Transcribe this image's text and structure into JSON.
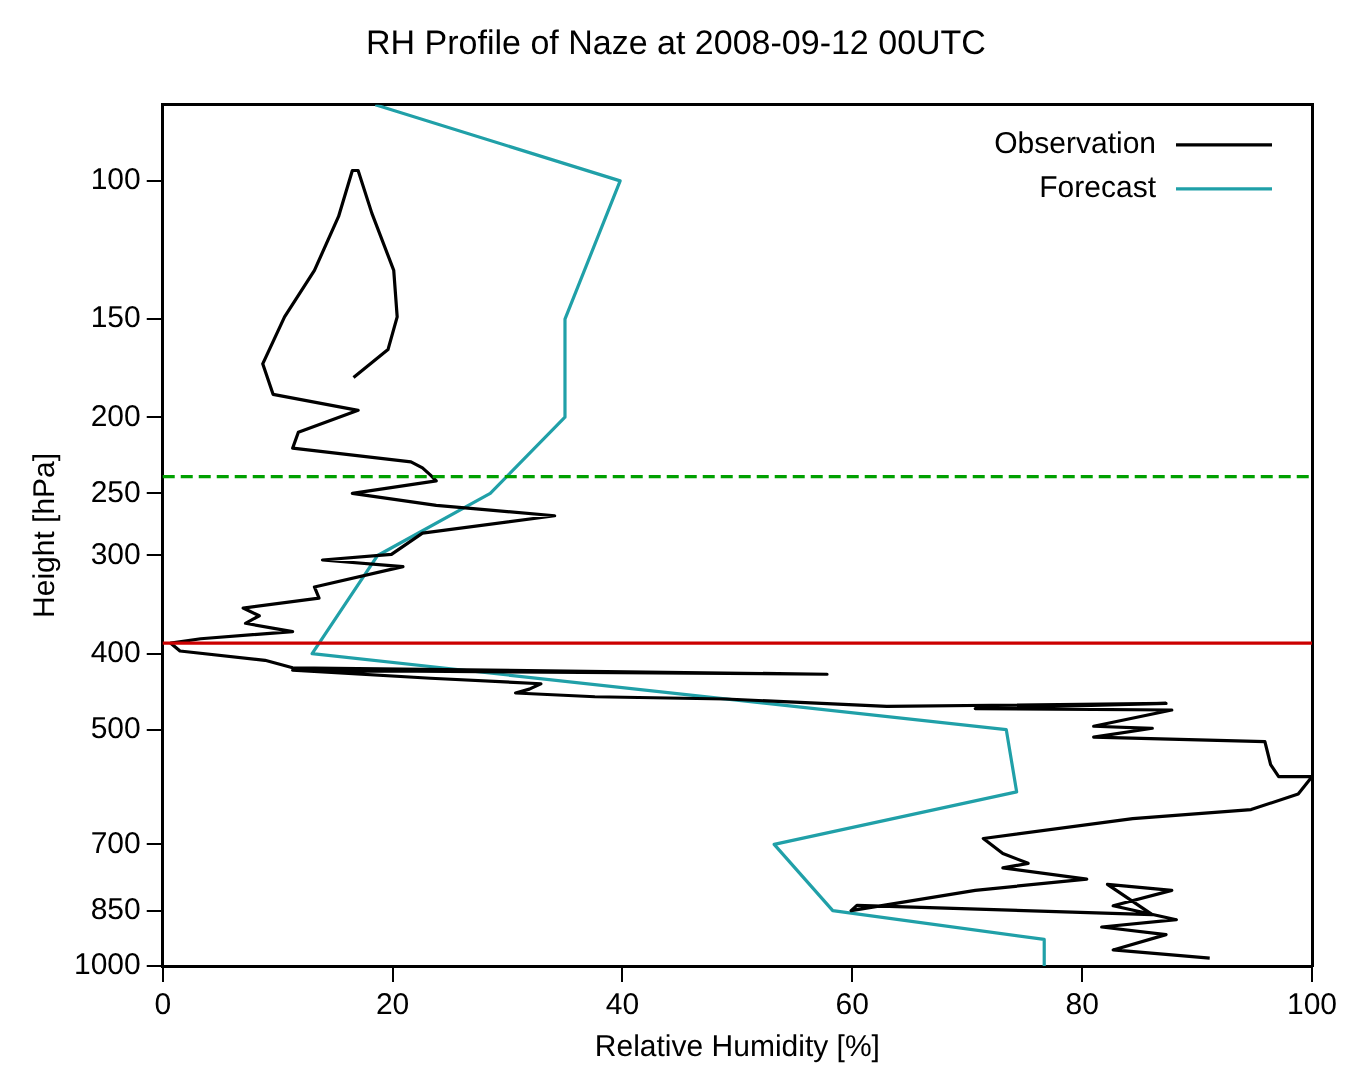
{
  "chart_data": {
    "type": "line",
    "title": "RH Profile of Naze at 2008-09-12 00UTC",
    "xlabel": "Relative Humidity [%]",
    "ylabel": "Height [hPa]",
    "xlim": [
      0,
      100
    ],
    "xticks": [
      0,
      20,
      40,
      60,
      80,
      100
    ],
    "ylim": [
      1000,
      80
    ],
    "yticks": [
      100,
      150,
      200,
      250,
      300,
      400,
      500,
      700,
      850,
      1000
    ],
    "log": "y",
    "grid": false,
    "legend": "top right",
    "marker": "none",
    "line_style": "solid",
    "series": [
      {
        "name": "Observation",
        "color": "#000000",
        "x": [
          91.1,
          82.7,
          87.3,
          81.7,
          88.2,
          82.7,
          87.8,
          82.2,
          86.1,
          60.4,
          59.9,
          70.7,
          80.4,
          73.1,
          75.3,
          73.1,
          71.4,
          84.4,
          94.7,
          98.8,
          100,
          97.1,
          96.4,
          95.9,
          81.0,
          86.1,
          81.0,
          87.8,
          70.7,
          87.3,
          63.0,
          49.0,
          37.6,
          30.7,
          31.9,
          32.9,
          23.3,
          11.3,
          57.8,
          11.3,
          8.9,
          1.5,
          0.7,
          3.3,
          11.3,
          7.2,
          8.4,
          7.0,
          13.6,
          13.2,
          20.9,
          13.9,
          19.9,
          22.6,
          34.1,
          23.8,
          16.5,
          23.8,
          23.3,
          22.6,
          21.6,
          11.3,
          11.8,
          17.0,
          9.6,
          8.7,
          10.6,
          13.2,
          15.3,
          16.5,
          17.0,
          18.2,
          20.1,
          20.4,
          19.6,
          16.6
        ],
        "values": [
          977,
          954,
          912,
          892,
          873,
          838,
          801,
          787,
          860,
          837,
          850,
          801,
          775,
          750,
          740,
          719,
          688,
          649,
          632,
          604,
          574,
          574,
          554,
          518,
          511,
          498,
          495,
          472,
          470,
          463,
          467,
          457,
          454,
          449,
          444,
          437,
          430,
          420,
          425,
          417,
          408,
          397,
          388,
          383,
          375,
          366,
          358,
          350,
          340,
          329,
          310,
          304,
          299,
          281,
          267,
          259,
          250,
          241,
          237,
          232,
          228,
          219,
          209,
          196,
          187,
          171,
          149,
          130,
          111,
          97,
          97,
          110,
          130,
          149,
          164,
          178
        ]
      },
      {
        "name": "Forecast",
        "color": "#20a0a8",
        "x": [
          18.5,
          39.8,
          35.0,
          35.0,
          28.5,
          18.7,
          13.0,
          73.4,
          74.3,
          53.2,
          58.3,
          76.7,
          76.7
        ],
        "values": [
          80,
          100,
          150,
          200,
          250,
          300,
          400,
          500,
          600,
          700,
          850,
          925,
          1000
        ]
      }
    ],
    "ref_lines": [
      {
        "axis": "y",
        "value": 238,
        "color": "#00a000",
        "line_style": "dashed"
      },
      {
        "axis": "y",
        "value": 388,
        "color": "#cc0000",
        "line_style": "solid"
      }
    ]
  }
}
